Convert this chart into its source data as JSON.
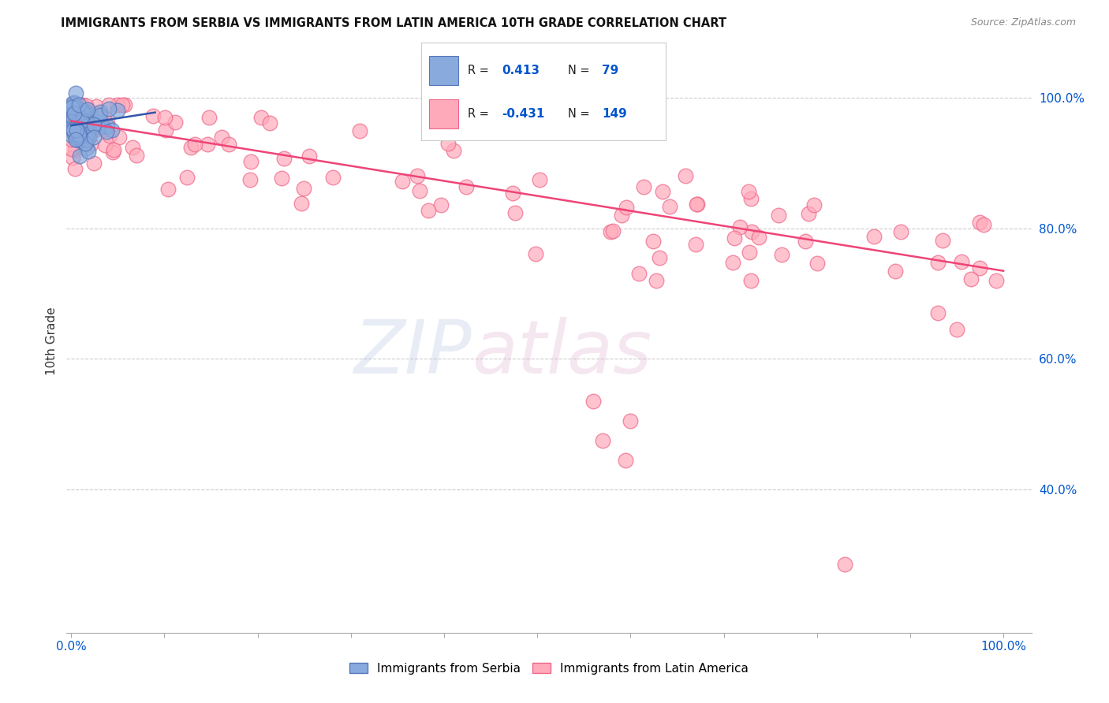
{
  "title": "IMMIGRANTS FROM SERBIA VS IMMIGRANTS FROM LATIN AMERICA 10TH GRADE CORRELATION CHART",
  "source": "Source: ZipAtlas.com",
  "ylabel": "10th Grade",
  "serbia_color": "#88aadd",
  "latin_color": "#ffaabb",
  "serbia_edge": "#5577bb",
  "latin_edge": "#ee6688",
  "serbia_line_color": "#3355aa",
  "latin_line_color": "#ee4477",
  "legend_R_serbia": "0.413",
  "legend_N_serbia": "79",
  "legend_R_latin": "-0.431",
  "legend_N_latin": "149",
  "legend_R_color": "#0055cc",
  "legend_N_color": "#0055cc",
  "ytick_color": "#0055cc",
  "xtick_color": "#0055cc",
  "grid_color": "#cccccc",
  "title_color": "#111111",
  "source_color": "#888888",
  "serbia_line_x0": 0.0,
  "serbia_line_x1": 0.09,
  "serbia_line_y0": 0.958,
  "serbia_line_y1": 0.978,
  "latin_line_x0": 0.0,
  "latin_line_x1": 1.0,
  "latin_line_y0": 0.965,
  "latin_line_y1": 0.735,
  "xlim_min": -0.005,
  "xlim_max": 1.03,
  "ylim_min": 0.18,
  "ylim_max": 1.075
}
